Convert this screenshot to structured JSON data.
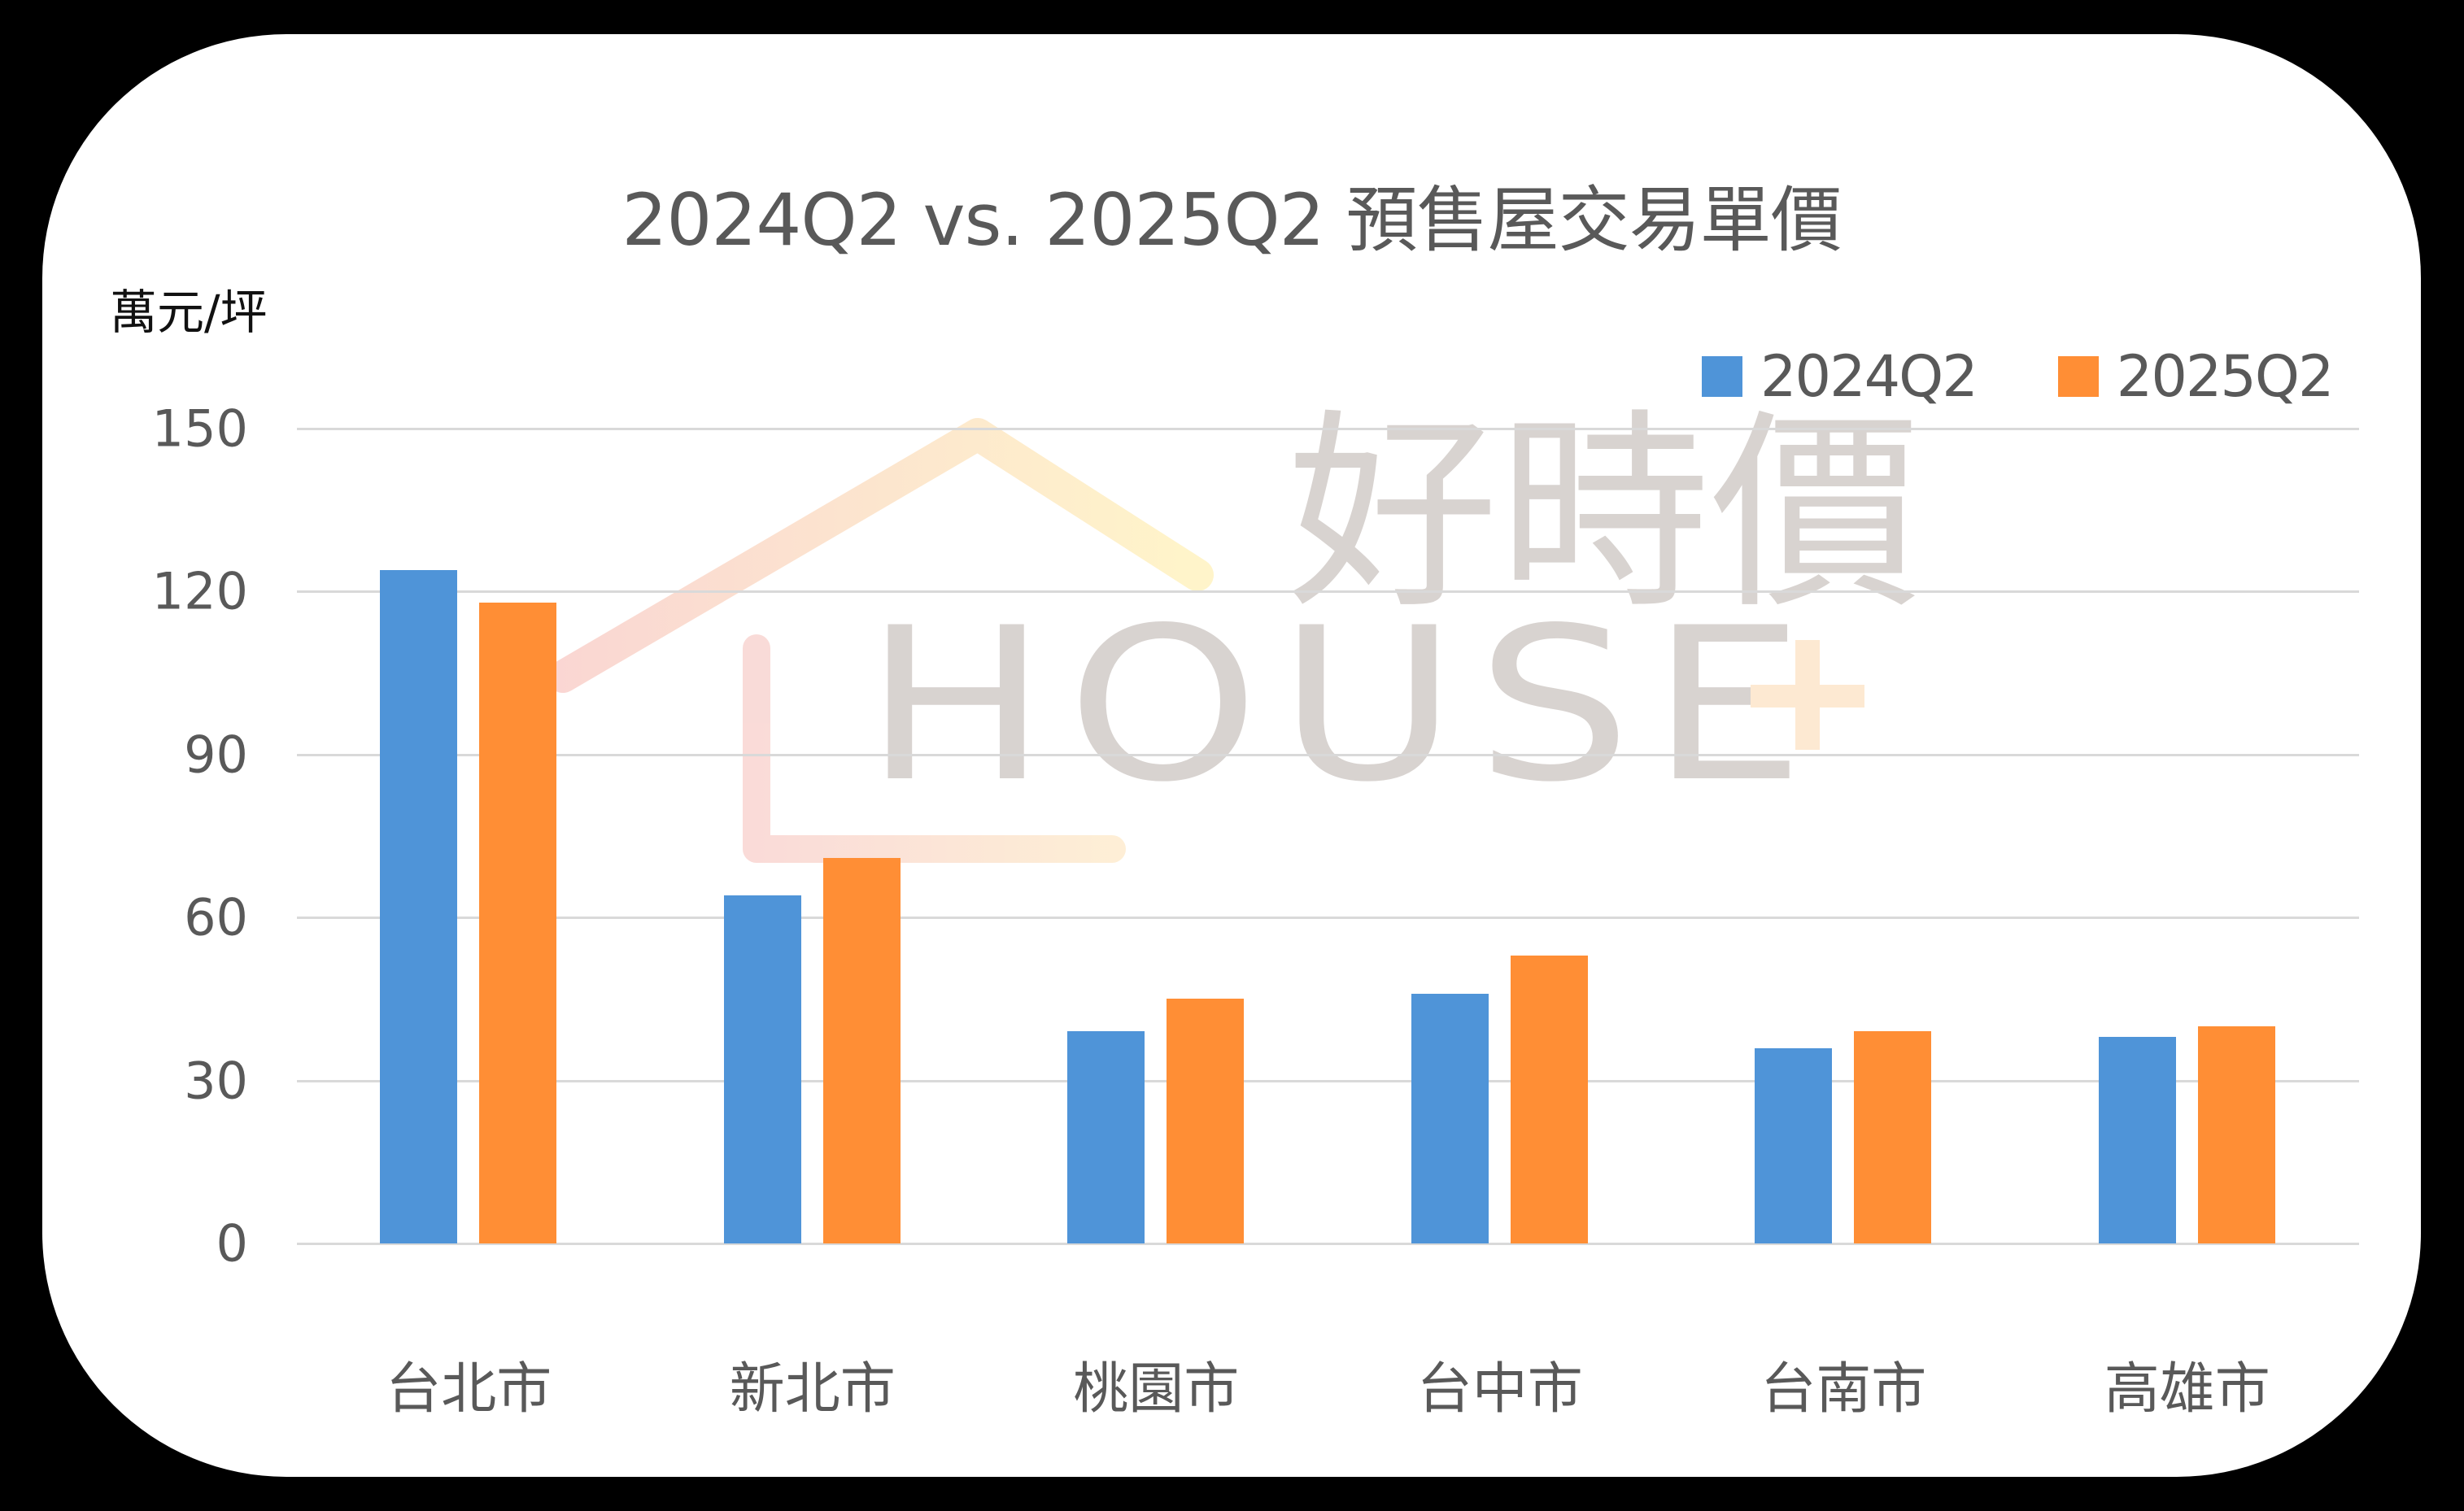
{
  "chart_data": {
    "type": "bar",
    "title": "2024Q2 vs. 2025Q2 預售屋交易單價",
    "xlabel": "",
    "ylabel": "萬元/坪",
    "categories": [
      "台北市",
      "新北市",
      "桃園市",
      "台中市",
      "台南市",
      "高雄市"
    ],
    "series": [
      {
        "name": "2024Q2",
        "color": "#4F94D8",
        "values": [
          124,
          64,
          39,
          46,
          36,
          38
        ]
      },
      {
        "name": "2025Q2",
        "color": "#FF8E35",
        "values": [
          118,
          71,
          45,
          53,
          39,
          40
        ]
      }
    ],
    "ylim": [
      0,
      150
    ],
    "yticks": [
      0,
      30,
      60,
      90,
      120,
      150
    ],
    "grid": true,
    "legend_position": "top-right",
    "watermark": {
      "text_zh": "好時價",
      "text_en": "HOUSE+"
    }
  },
  "header": {
    "title": "2024Q2 vs. 2025Q2 預售屋交易單價",
    "unit": "萬元/坪"
  },
  "legend": {
    "items": [
      {
        "label": "2024Q2",
        "color": "#4F94D8"
      },
      {
        "label": "2025Q2",
        "color": "#FF8E35"
      }
    ]
  },
  "axis": {
    "yticks": [
      "0",
      "30",
      "60",
      "90",
      "120",
      "150"
    ],
    "xlabels": [
      "台北市",
      "新北市",
      "桃園市",
      "台中市",
      "台南市",
      "高雄市"
    ]
  },
  "watermark": {
    "zh": "好時價",
    "en": "HOUSE",
    "plus": "+"
  }
}
